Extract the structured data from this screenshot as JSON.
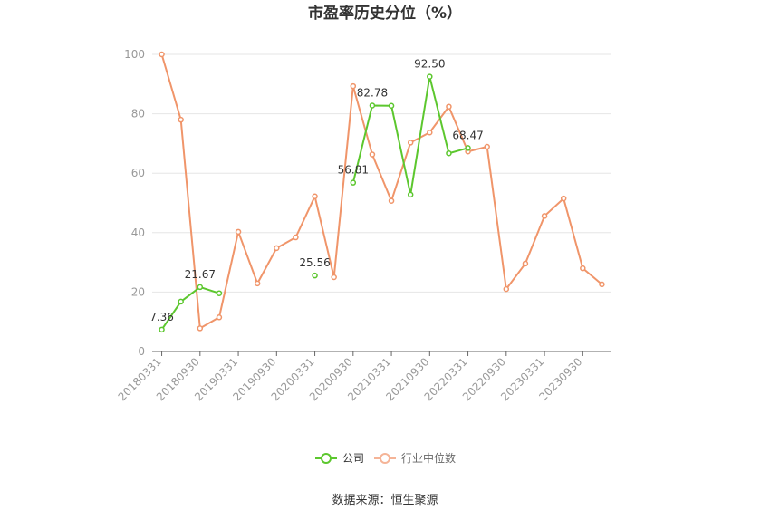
{
  "chart_data": {
    "type": "line",
    "title": "市盈率历史分位（%）",
    "source": "数据来源：恒生聚源",
    "ylim": [
      0,
      100
    ],
    "yticks": [
      0,
      20,
      40,
      60,
      80,
      100
    ],
    "grid": true,
    "legend_position": "bottom",
    "x": [
      "20180331",
      "20180630",
      "20180930",
      "20181231",
      "20190331",
      "20190630",
      "20190930",
      "20191231",
      "20200331",
      "20200630",
      "20200930",
      "20201231",
      "20210331",
      "20210630",
      "20210930",
      "20211231",
      "20220331",
      "20220630",
      "20220930",
      "20221231",
      "20230331",
      "20230630",
      "20230930",
      "20231231"
    ],
    "xtick_labels": [
      "20180331",
      "20180930",
      "20190331",
      "20190930",
      "20200331",
      "20200930",
      "20210331",
      "20210930",
      "20220331",
      "20220930",
      "20230331",
      "20230930"
    ],
    "series": [
      {
        "name": "公司",
        "color": "#5cc72e",
        "values": [
          7.36,
          16.8,
          21.67,
          19.6,
          null,
          null,
          null,
          null,
          25.56,
          null,
          56.81,
          82.78,
          82.7,
          52.8,
          92.5,
          66.7,
          68.47,
          null,
          null,
          null,
          null,
          null,
          null,
          null
        ],
        "labels": [
          {
            "index": 0,
            "text": "7.36"
          },
          {
            "index": 2,
            "text": "21.67"
          },
          {
            "index": 8,
            "text": "25.56"
          },
          {
            "index": 10,
            "text": "56.81"
          },
          {
            "index": 11,
            "text": "82.78"
          },
          {
            "index": 14,
            "text": "92.50"
          },
          {
            "index": 16,
            "text": "68.47"
          }
        ]
      },
      {
        "name": "行业中位数",
        "color": "#f0956a",
        "values": [
          100,
          78,
          7.8,
          11.5,
          40.3,
          22.9,
          34.8,
          38.4,
          52.2,
          25.0,
          89.3,
          66.3,
          50.7,
          70.3,
          73.7,
          82.4,
          67.3,
          68.9,
          21.0,
          29.6,
          45.6,
          51.5,
          28.0,
          22.6
        ]
      }
    ]
  }
}
